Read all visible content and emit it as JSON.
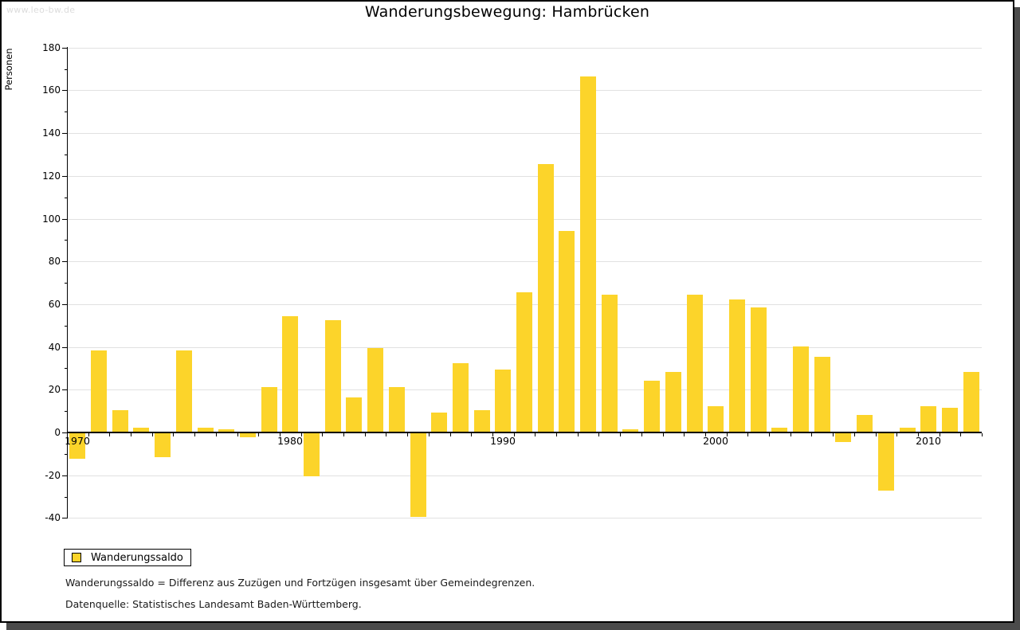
{
  "watermark": "www.leo-bw.de",
  "title": "Wanderungsbewegung: Hambrücken",
  "legend": {
    "label": "Wanderungssaldo"
  },
  "footnotes": {
    "definition": "Wanderungssaldo = Differenz aus Zuzügen und Fortzügen insgesamt über Gemeindegrenzen.",
    "source": "Datenquelle: Statistisches Landesamt Baden-Württemberg."
  },
  "colors": {
    "bar": "#fcd42a",
    "grid": "#e1e1e1",
    "axis": "#000000",
    "frame_shadow": "#4b4b4b",
    "watermark": "#dcdcdc"
  },
  "chart_data": {
    "type": "bar",
    "title": "Wanderungsbewegung: Hambrücken",
    "xlabel": "",
    "ylabel": "Personen",
    "ylim": [
      -40,
      180
    ],
    "ytick_step": 20,
    "ytick_minor_step": 10,
    "grid": "horizontal-major",
    "legend_position": "bottom-left",
    "x": [
      1970,
      1971,
      1972,
      1973,
      1974,
      1975,
      1976,
      1977,
      1978,
      1979,
      1980,
      1981,
      1982,
      1983,
      1984,
      1985,
      1986,
      1987,
      1988,
      1989,
      1990,
      1991,
      1992,
      1993,
      1994,
      1995,
      1996,
      1997,
      1998,
      1999,
      2000,
      2001,
      2002,
      2003,
      2004,
      2005,
      2006,
      2007,
      2008,
      2009,
      2010,
      2011,
      2012
    ],
    "xtick_labels": [
      "1970",
      "1980",
      "1990",
      "2000",
      "2010"
    ],
    "series": [
      {
        "name": "Wanderungssaldo",
        "values": [
          -12,
          38,
          10,
          2,
          -11,
          38,
          2,
          1,
          -2,
          21,
          54,
          -20,
          52,
          16,
          39,
          21,
          -39,
          9,
          32,
          10,
          29,
          65,
          125,
          94,
          166,
          64,
          1,
          24,
          28,
          64,
          12,
          62,
          58,
          2,
          40,
          35,
          -4,
          8,
          -27,
          2,
          12,
          11,
          28
        ]
      }
    ]
  }
}
